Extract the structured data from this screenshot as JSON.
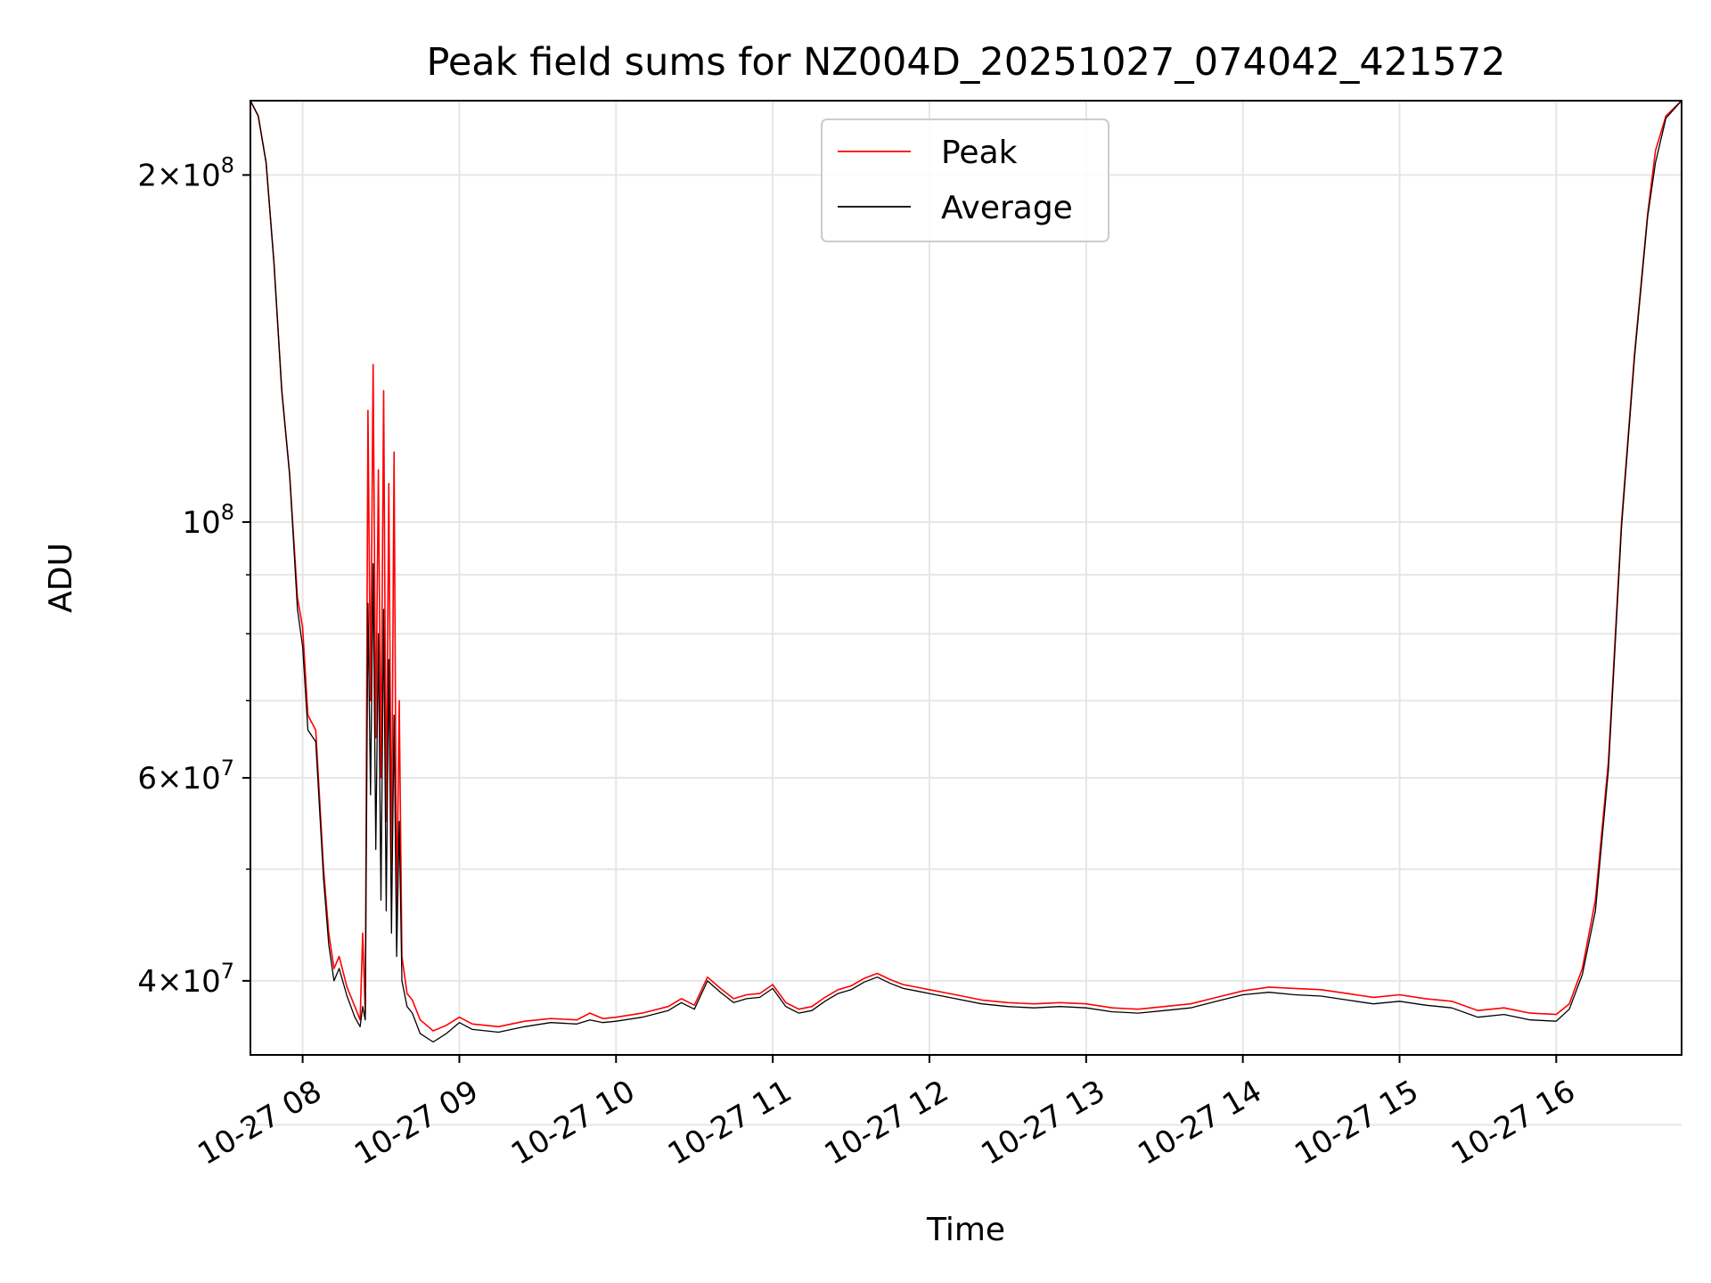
{
  "chart_data": {
    "type": "line",
    "title": "Peak field sums for NZ004D_20251027_074042_421572",
    "xlabel": "Time",
    "ylabel": "ADU",
    "yscale": "log",
    "ylim": [
      34500000,
      232000000
    ],
    "xlim": [
      "2025-10-27 07:40",
      "2025-10-27 16:48"
    ],
    "x_ticks": [
      "10-27 08",
      "10-27 09",
      "10-27 10",
      "10-27 11",
      "10-27 12",
      "10-27 13",
      "10-27 14",
      "10-27 15",
      "10-27 16"
    ],
    "y_ticks": [
      {
        "value": 200000000,
        "mantissa": "2",
        "exponent": "8"
      },
      {
        "value": 100000000,
        "mantissa": "",
        "exponent": "8"
      },
      {
        "value": 60000000,
        "mantissa": "6",
        "exponent": "7"
      },
      {
        "value": 40000000,
        "mantissa": "4",
        "exponent": "7"
      }
    ],
    "y_minor_ticks": [
      30000000,
      50000000,
      70000000,
      80000000,
      90000000
    ],
    "grid": true,
    "legend_position": "top-center",
    "series": [
      {
        "name": "Peak",
        "color": "#ff0000",
        "points": [
          [
            "07:40",
            232000000
          ],
          [
            "07:43",
            225000000
          ],
          [
            "07:46",
            205000000
          ],
          [
            "07:49",
            168000000
          ],
          [
            "07:52",
            130000000
          ],
          [
            "07:55",
            110000000
          ],
          [
            "07:58",
            86000000
          ],
          [
            "08:00",
            81000000
          ],
          [
            "08:02",
            68000000
          ],
          [
            "08:05",
            66000000
          ],
          [
            "08:08",
            50000000
          ],
          [
            "08:10",
            44000000
          ],
          [
            "08:12",
            41000000
          ],
          [
            "08:14",
            42000000
          ],
          [
            "08:17",
            39500000
          ],
          [
            "08:20",
            38000000
          ],
          [
            "08:22",
            37000000
          ],
          [
            "08:23",
            44000000
          ],
          [
            "08:24",
            37500000
          ],
          [
            "08:25",
            125000000
          ],
          [
            "08:26",
            70000000
          ],
          [
            "08:27",
            137000000
          ],
          [
            "08:28",
            65000000
          ],
          [
            "08:29",
            111000000
          ],
          [
            "08:30",
            60000000
          ],
          [
            "08:31",
            130000000
          ],
          [
            "08:32",
            55000000
          ],
          [
            "08:33",
            108000000
          ],
          [
            "08:34",
            50000000
          ],
          [
            "08:35",
            115000000
          ],
          [
            "08:36",
            45000000
          ],
          [
            "08:37",
            70000000
          ],
          [
            "08:38",
            42000000
          ],
          [
            "08:40",
            39000000
          ],
          [
            "08:42",
            38500000
          ],
          [
            "08:45",
            37000000
          ],
          [
            "08:50",
            36200000
          ],
          [
            "08:55",
            36600000
          ],
          [
            "09:00",
            37200000
          ],
          [
            "09:05",
            36700000
          ],
          [
            "09:15",
            36500000
          ],
          [
            "09:25",
            36900000
          ],
          [
            "09:35",
            37100000
          ],
          [
            "09:45",
            37000000
          ],
          [
            "09:50",
            37500000
          ],
          [
            "09:55",
            37100000
          ],
          [
            "10:00",
            37200000
          ],
          [
            "10:10",
            37500000
          ],
          [
            "10:20",
            38000000
          ],
          [
            "10:25",
            38600000
          ],
          [
            "10:30",
            38100000
          ],
          [
            "10:35",
            40300000
          ],
          [
            "10:40",
            39400000
          ],
          [
            "10:45",
            38600000
          ],
          [
            "10:50",
            38900000
          ],
          [
            "10:55",
            39000000
          ],
          [
            "11:00",
            39700000
          ],
          [
            "11:05",
            38300000
          ],
          [
            "11:10",
            37800000
          ],
          [
            "11:15",
            38000000
          ],
          [
            "11:20",
            38700000
          ],
          [
            "11:25",
            39300000
          ],
          [
            "11:30",
            39600000
          ],
          [
            "11:35",
            40200000
          ],
          [
            "11:40",
            40600000
          ],
          [
            "11:45",
            40100000
          ],
          [
            "11:50",
            39700000
          ],
          [
            "11:55",
            39500000
          ],
          [
            "12:00",
            39300000
          ],
          [
            "12:10",
            38900000
          ],
          [
            "12:20",
            38500000
          ],
          [
            "12:30",
            38300000
          ],
          [
            "12:40",
            38200000
          ],
          [
            "12:50",
            38300000
          ],
          [
            "13:00",
            38200000
          ],
          [
            "13:10",
            37900000
          ],
          [
            "13:20",
            37800000
          ],
          [
            "13:30",
            38000000
          ],
          [
            "13:40",
            38200000
          ],
          [
            "13:50",
            38700000
          ],
          [
            "14:00",
            39200000
          ],
          [
            "14:10",
            39500000
          ],
          [
            "14:20",
            39400000
          ],
          [
            "14:30",
            39300000
          ],
          [
            "14:40",
            39000000
          ],
          [
            "14:50",
            38700000
          ],
          [
            "15:00",
            38900000
          ],
          [
            "15:10",
            38600000
          ],
          [
            "15:20",
            38400000
          ],
          [
            "15:30",
            37700000
          ],
          [
            "15:40",
            37900000
          ],
          [
            "15:50",
            37500000
          ],
          [
            "16:00",
            37400000
          ],
          [
            "16:05",
            38200000
          ],
          [
            "16:10",
            41000000
          ],
          [
            "16:15",
            47000000
          ],
          [
            "16:20",
            62000000
          ],
          [
            "16:25",
            100000000
          ],
          [
            "16:30",
            140000000
          ],
          [
            "16:35",
            185000000
          ],
          [
            "16:38",
            210000000
          ],
          [
            "16:42",
            225000000
          ],
          [
            "16:48",
            232000000
          ]
        ]
      },
      {
        "name": "Average",
        "color": "#000000",
        "points": [
          [
            "07:40",
            232000000
          ],
          [
            "07:43",
            225000000
          ],
          [
            "07:46",
            205000000
          ],
          [
            "07:49",
            168000000
          ],
          [
            "07:52",
            130000000
          ],
          [
            "07:55",
            110000000
          ],
          [
            "07:58",
            84000000
          ],
          [
            "08:00",
            78000000
          ],
          [
            "08:02",
            66000000
          ],
          [
            "08:05",
            64500000
          ],
          [
            "08:08",
            49000000
          ],
          [
            "08:10",
            43000000
          ],
          [
            "08:12",
            40000000
          ],
          [
            "08:14",
            41000000
          ],
          [
            "08:17",
            38800000
          ],
          [
            "08:20",
            37200000
          ],
          [
            "08:22",
            36500000
          ],
          [
            "08:23",
            38000000
          ],
          [
            "08:24",
            37000000
          ],
          [
            "08:25",
            85000000
          ],
          [
            "08:26",
            58000000
          ],
          [
            "08:27",
            92000000
          ],
          [
            "08:28",
            52000000
          ],
          [
            "08:29",
            80000000
          ],
          [
            "08:30",
            47000000
          ],
          [
            "08:31",
            84000000
          ],
          [
            "08:32",
            46000000
          ],
          [
            "08:33",
            76000000
          ],
          [
            "08:34",
            44000000
          ],
          [
            "08:35",
            68000000
          ],
          [
            "08:36",
            42000000
          ],
          [
            "08:37",
            55000000
          ],
          [
            "08:38",
            40000000
          ],
          [
            "08:40",
            38000000
          ],
          [
            "08:42",
            37500000
          ],
          [
            "08:45",
            36000000
          ],
          [
            "08:50",
            35400000
          ],
          [
            "08:55",
            36000000
          ],
          [
            "09:00",
            36800000
          ],
          [
            "09:05",
            36300000
          ],
          [
            "09:15",
            36100000
          ],
          [
            "09:25",
            36500000
          ],
          [
            "09:35",
            36800000
          ],
          [
            "09:45",
            36700000
          ],
          [
            "09:50",
            37000000
          ],
          [
            "09:55",
            36800000
          ],
          [
            "10:00",
            36900000
          ],
          [
            "10:10",
            37200000
          ],
          [
            "10:20",
            37700000
          ],
          [
            "10:25",
            38300000
          ],
          [
            "10:30",
            37800000
          ],
          [
            "10:35",
            40000000
          ],
          [
            "10:40",
            39100000
          ],
          [
            "10:45",
            38300000
          ],
          [
            "10:50",
            38600000
          ],
          [
            "10:55",
            38700000
          ],
          [
            "11:00",
            39400000
          ],
          [
            "11:05",
            38000000
          ],
          [
            "11:10",
            37500000
          ],
          [
            "11:15",
            37700000
          ],
          [
            "11:20",
            38400000
          ],
          [
            "11:25",
            39000000
          ],
          [
            "11:30",
            39300000
          ],
          [
            "11:35",
            39900000
          ],
          [
            "11:40",
            40300000
          ],
          [
            "11:45",
            39800000
          ],
          [
            "11:50",
            39400000
          ],
          [
            "11:55",
            39200000
          ],
          [
            "12:00",
            39000000
          ],
          [
            "12:10",
            38600000
          ],
          [
            "12:20",
            38200000
          ],
          [
            "12:30",
            38000000
          ],
          [
            "12:40",
            37900000
          ],
          [
            "12:50",
            38000000
          ],
          [
            "13:00",
            37900000
          ],
          [
            "13:10",
            37600000
          ],
          [
            "13:20",
            37500000
          ],
          [
            "13:30",
            37700000
          ],
          [
            "13:40",
            37900000
          ],
          [
            "13:50",
            38400000
          ],
          [
            "14:00",
            38900000
          ],
          [
            "14:10",
            39100000
          ],
          [
            "14:20",
            38900000
          ],
          [
            "14:30",
            38800000
          ],
          [
            "14:40",
            38500000
          ],
          [
            "14:50",
            38200000
          ],
          [
            "15:00",
            38400000
          ],
          [
            "15:10",
            38100000
          ],
          [
            "15:20",
            37900000
          ],
          [
            "15:30",
            37200000
          ],
          [
            "15:40",
            37400000
          ],
          [
            "15:50",
            37000000
          ],
          [
            "16:00",
            36900000
          ],
          [
            "16:05",
            37800000
          ],
          [
            "16:10",
            40500000
          ],
          [
            "16:15",
            46000000
          ],
          [
            "16:20",
            61000000
          ],
          [
            "16:25",
            99000000
          ],
          [
            "16:30",
            139000000
          ],
          [
            "16:35",
            184000000
          ],
          [
            "16:38",
            205000000
          ],
          [
            "16:42",
            224000000
          ],
          [
            "16:48",
            232000000
          ]
        ]
      }
    ]
  }
}
